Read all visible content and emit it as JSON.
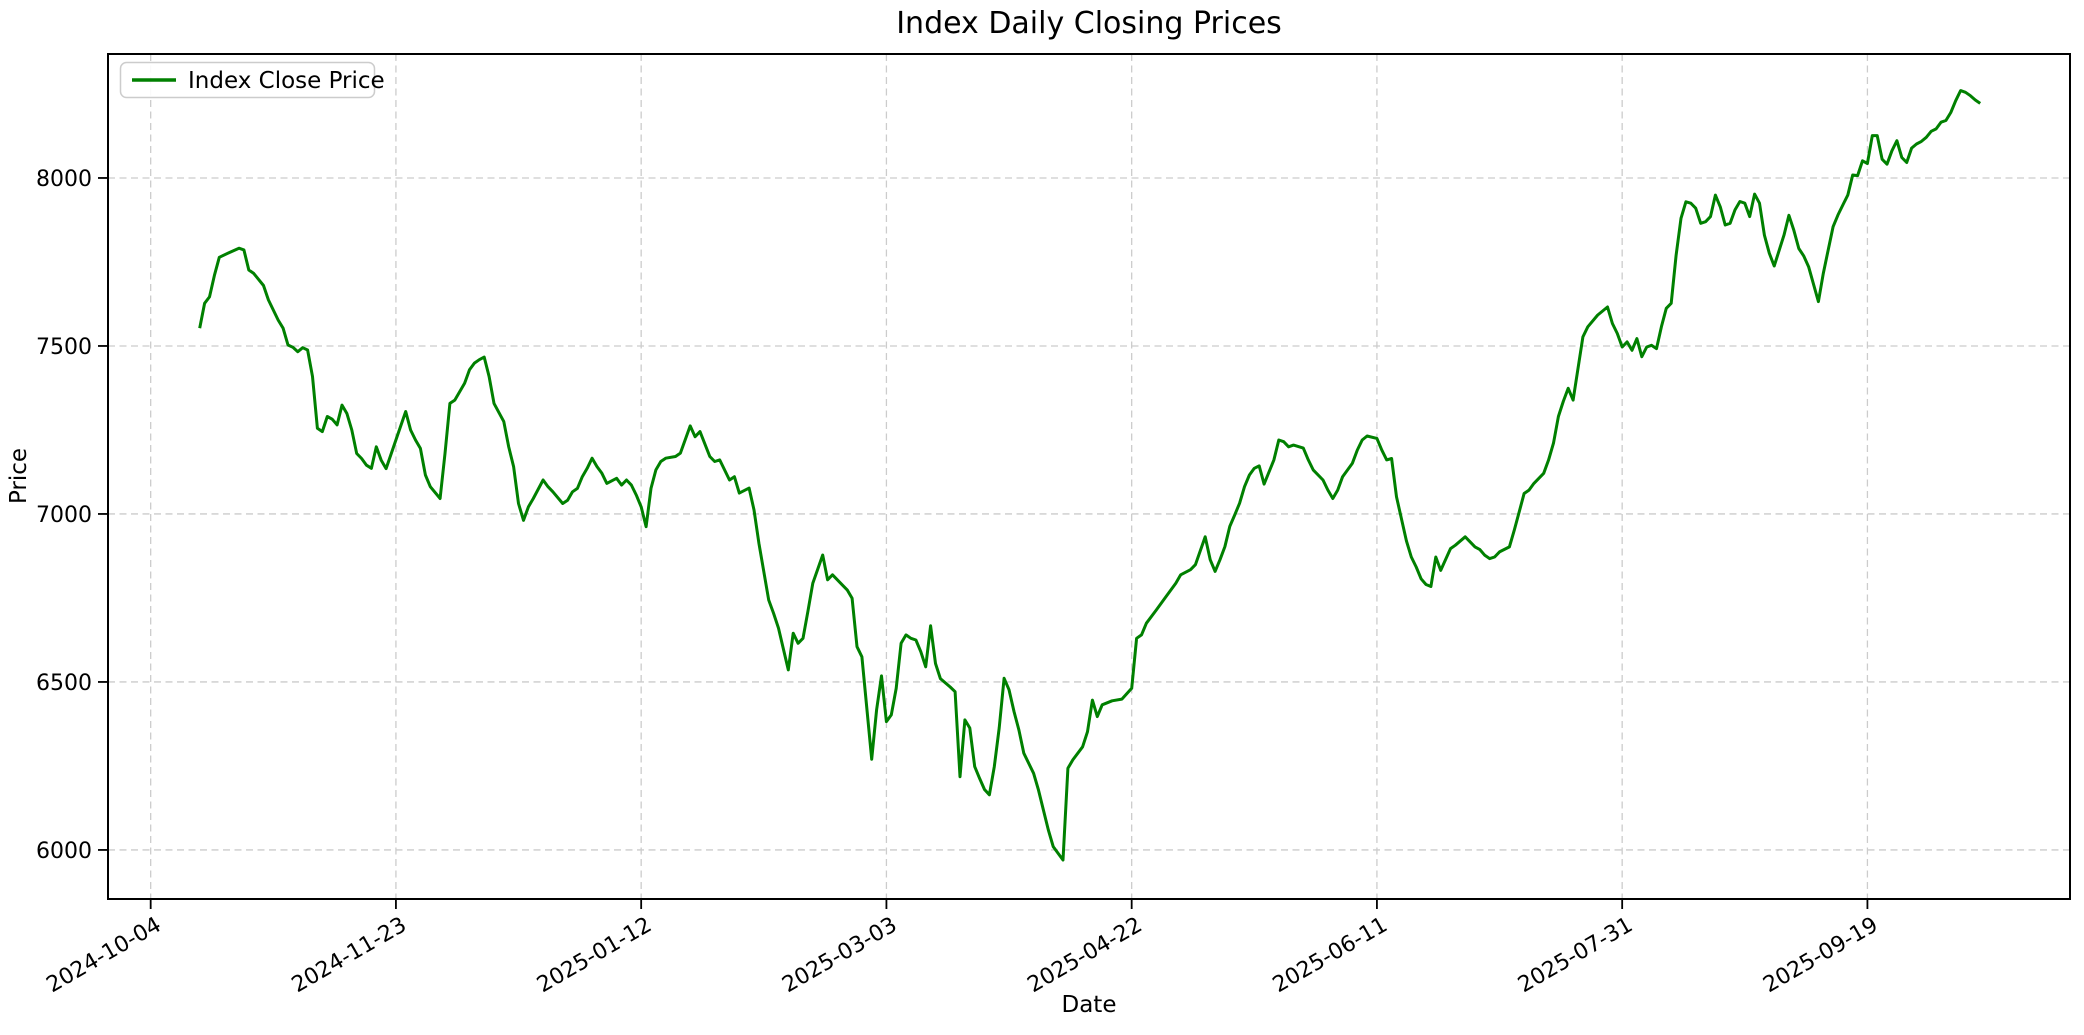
{
  "figure": {
    "background_color": "#ffffff",
    "plot_border_color": "#000000",
    "grid_color": "#cccccc"
  },
  "chart_data": {
    "type": "line",
    "title": "Index Daily Closing Prices",
    "xlabel": "Date",
    "ylabel": "Price",
    "grid": {
      "visible": true,
      "style": "dashed",
      "color": "#cccccc"
    },
    "legend": {
      "position": "upper left",
      "entries": [
        {
          "label": "Index Close Price",
          "color": "#008000"
        }
      ]
    },
    "x_axis": {
      "unit": "days since 2024-10-04",
      "base_date": "2024-10-04",
      "tick_days": [
        0,
        50,
        100,
        150,
        200,
        250,
        300,
        350
      ],
      "tick_labels": [
        "2024-10-04",
        "2024-11-23",
        "2025-01-12",
        "2025-03-03",
        "2025-04-22",
        "2025-06-11",
        "2025-07-31",
        "2025-09-19"
      ],
      "tick_rotation_deg": 30,
      "lim_days": [
        -8.7,
        391.3
      ]
    },
    "y_axis": {
      "ticks": [
        6000,
        6500,
        7000,
        7500,
        8000
      ],
      "lim": [
        5854,
        8369
      ]
    },
    "series": [
      {
        "name": "Index Close Price",
        "color": "#008000",
        "line_width": 3,
        "points_format": "[days_since_2024-10-04, close_price]",
        "points": [
          [
            10,
            7553
          ],
          [
            11,
            7627
          ],
          [
            12,
            7646
          ],
          [
            13,
            7710
          ],
          [
            14,
            7764
          ],
          [
            16,
            7778
          ],
          [
            18,
            7791
          ],
          [
            19,
            7786
          ],
          [
            20,
            7726
          ],
          [
            21,
            7716
          ],
          [
            23,
            7680
          ],
          [
            24,
            7637
          ],
          [
            26,
            7577
          ],
          [
            27,
            7553
          ],
          [
            28,
            7503
          ],
          [
            29,
            7496
          ],
          [
            30,
            7483
          ],
          [
            31,
            7495
          ],
          [
            32,
            7488
          ],
          [
            33,
            7409
          ],
          [
            34,
            7255
          ],
          [
            35,
            7245
          ],
          [
            36,
            7290
          ],
          [
            37,
            7282
          ],
          [
            38,
            7265
          ],
          [
            39,
            7324
          ],
          [
            40,
            7299
          ],
          [
            41,
            7250
          ],
          [
            42,
            7180
          ],
          [
            43,
            7165
          ],
          [
            44,
            7145
          ],
          [
            45,
            7136
          ],
          [
            46,
            7200
          ],
          [
            47,
            7160
          ],
          [
            48,
            7135
          ],
          [
            50,
            7220
          ],
          [
            52,
            7305
          ],
          [
            53,
            7250
          ],
          [
            54,
            7220
          ],
          [
            55,
            7195
          ],
          [
            56,
            7116
          ],
          [
            57,
            7081
          ],
          [
            59,
            7046
          ],
          [
            60,
            7180
          ],
          [
            61,
            7329
          ],
          [
            62,
            7339
          ],
          [
            64,
            7389
          ],
          [
            65,
            7429
          ],
          [
            66,
            7449
          ],
          [
            67,
            7459
          ],
          [
            68,
            7467
          ],
          [
            69,
            7409
          ],
          [
            70,
            7329
          ],
          [
            72,
            7275
          ],
          [
            73,
            7200
          ],
          [
            74,
            7141
          ],
          [
            75,
            7031
          ],
          [
            76,
            6981
          ],
          [
            77,
            7021
          ],
          [
            78,
            7046
          ],
          [
            80,
            7101
          ],
          [
            81,
            7081
          ],
          [
            82,
            7066
          ],
          [
            84,
            7031
          ],
          [
            85,
            7041
          ],
          [
            86,
            7066
          ],
          [
            87,
            7076
          ],
          [
            88,
            7111
          ],
          [
            89,
            7136
          ],
          [
            90,
            7166
          ],
          [
            91,
            7141
          ],
          [
            92,
            7121
          ],
          [
            93,
            7091
          ],
          [
            95,
            7106
          ],
          [
            96,
            7086
          ],
          [
            97,
            7101
          ],
          [
            98,
            7086
          ],
          [
            99,
            7056
          ],
          [
            100,
            7021
          ],
          [
            101,
            6962
          ],
          [
            102,
            7076
          ],
          [
            103,
            7131
          ],
          [
            104,
            7156
          ],
          [
            105,
            7166
          ],
          [
            107,
            7171
          ],
          [
            108,
            7181
          ],
          [
            110,
            7262
          ],
          [
            111,
            7230
          ],
          [
            112,
            7245
          ],
          [
            114,
            7171
          ],
          [
            115,
            7156
          ],
          [
            116,
            7161
          ],
          [
            118,
            7101
          ],
          [
            119,
            7111
          ],
          [
            120,
            7062
          ],
          [
            122,
            7077
          ],
          [
            123,
            7012
          ],
          [
            124,
            6913
          ],
          [
            126,
            6744
          ],
          [
            127,
            6704
          ],
          [
            128,
            6660
          ],
          [
            130,
            6536
          ],
          [
            131,
            6645
          ],
          [
            132,
            6615
          ],
          [
            133,
            6630
          ],
          [
            134,
            6710
          ],
          [
            135,
            6794
          ],
          [
            137,
            6878
          ],
          [
            138,
            6804
          ],
          [
            139,
            6819
          ],
          [
            141,
            6789
          ],
          [
            142,
            6774
          ],
          [
            143,
            6749
          ],
          [
            144,
            6605
          ],
          [
            145,
            6575
          ],
          [
            147,
            6270
          ],
          [
            148,
            6417
          ],
          [
            149,
            6518
          ],
          [
            150,
            6382
          ],
          [
            151,
            6402
          ],
          [
            152,
            6481
          ],
          [
            153,
            6615
          ],
          [
            154,
            6640
          ],
          [
            155,
            6630
          ],
          [
            156,
            6625
          ],
          [
            157,
            6590
          ],
          [
            158,
            6545
          ],
          [
            159,
            6667
          ],
          [
            160,
            6555
          ],
          [
            161,
            6510
          ],
          [
            163,
            6485
          ],
          [
            164,
            6471
          ],
          [
            165,
            6218
          ],
          [
            166,
            6387
          ],
          [
            167,
            6363
          ],
          [
            168,
            6248
          ],
          [
            169,
            6213
          ],
          [
            170,
            6180
          ],
          [
            171,
            6164
          ],
          [
            172,
            6248
          ],
          [
            173,
            6363
          ],
          [
            174,
            6511
          ],
          [
            175,
            6477
          ],
          [
            176,
            6412
          ],
          [
            177,
            6357
          ],
          [
            178,
            6288
          ],
          [
            180,
            6228
          ],
          [
            181,
            6178
          ],
          [
            182,
            6119
          ],
          [
            183,
            6060
          ],
          [
            184,
            6010
          ],
          [
            186,
            5970
          ],
          [
            187,
            6243
          ],
          [
            188,
            6268
          ],
          [
            190,
            6307
          ],
          [
            191,
            6352
          ],
          [
            192,
            6446
          ],
          [
            193,
            6397
          ],
          [
            194,
            6432
          ],
          [
            196,
            6444
          ],
          [
            198,
            6449
          ],
          [
            200,
            6481
          ],
          [
            201,
            6630
          ],
          [
            202,
            6640
          ],
          [
            203,
            6675
          ],
          [
            205,
            6714
          ],
          [
            207,
            6754
          ],
          [
            209,
            6794
          ],
          [
            210,
            6819
          ],
          [
            212,
            6834
          ],
          [
            213,
            6849
          ],
          [
            215,
            6932
          ],
          [
            216,
            6864
          ],
          [
            217,
            6829
          ],
          [
            218,
            6864
          ],
          [
            219,
            6903
          ],
          [
            220,
            6963
          ],
          [
            221,
            6997
          ],
          [
            222,
            7032
          ],
          [
            223,
            7081
          ],
          [
            224,
            7116
          ],
          [
            225,
            7136
          ],
          [
            226,
            7143
          ],
          [
            227,
            7089
          ],
          [
            229,
            7161
          ],
          [
            230,
            7220
          ],
          [
            231,
            7215
          ],
          [
            232,
            7200
          ],
          [
            233,
            7205
          ],
          [
            235,
            7196
          ],
          [
            236,
            7161
          ],
          [
            237,
            7131
          ],
          [
            239,
            7101
          ],
          [
            240,
            7071
          ],
          [
            241,
            7046
          ],
          [
            242,
            7071
          ],
          [
            243,
            7111
          ],
          [
            245,
            7151
          ],
          [
            246,
            7190
          ],
          [
            247,
            7220
          ],
          [
            248,
            7232
          ],
          [
            250,
            7225
          ],
          [
            251,
            7190
          ],
          [
            252,
            7161
          ],
          [
            253,
            7165
          ],
          [
            254,
            7051
          ],
          [
            256,
            6920
          ],
          [
            257,
            6872
          ],
          [
            258,
            6842
          ],
          [
            259,
            6807
          ],
          [
            260,
            6790
          ],
          [
            261,
            6784
          ],
          [
            262,
            6872
          ],
          [
            263,
            6832
          ],
          [
            265,
            6897
          ],
          [
            266,
            6907
          ],
          [
            268,
            6932
          ],
          [
            270,
            6902
          ],
          [
            271,
            6894
          ],
          [
            272,
            6877
          ],
          [
            273,
            6867
          ],
          [
            274,
            6872
          ],
          [
            275,
            6887
          ],
          [
            277,
            6902
          ],
          [
            278,
            6952
          ],
          [
            279,
            7006
          ],
          [
            280,
            7061
          ],
          [
            281,
            7071
          ],
          [
            282,
            7091
          ],
          [
            284,
            7121
          ],
          [
            285,
            7161
          ],
          [
            286,
            7211
          ],
          [
            287,
            7290
          ],
          [
            288,
            7335
          ],
          [
            289,
            7374
          ],
          [
            290,
            7339
          ],
          [
            292,
            7527
          ],
          [
            293,
            7557
          ],
          [
            295,
            7592
          ],
          [
            297,
            7616
          ],
          [
            298,
            7567
          ],
          [
            299,
            7537
          ],
          [
            300,
            7497
          ],
          [
            301,
            7512
          ],
          [
            302,
            7487
          ],
          [
            303,
            7522
          ],
          [
            304,
            7468
          ],
          [
            305,
            7497
          ],
          [
            306,
            7502
          ],
          [
            307,
            7492
          ],
          [
            308,
            7557
          ],
          [
            309,
            7612
          ],
          [
            310,
            7627
          ],
          [
            311,
            7770
          ],
          [
            312,
            7880
          ],
          [
            313,
            7929
          ],
          [
            314,
            7925
          ],
          [
            315,
            7910
          ],
          [
            316,
            7865
          ],
          [
            317,
            7870
          ],
          [
            318,
            7885
          ],
          [
            319,
            7949
          ],
          [
            320,
            7914
          ],
          [
            321,
            7860
          ],
          [
            322,
            7865
          ],
          [
            323,
            7905
          ],
          [
            324,
            7930
          ],
          [
            325,
            7925
          ],
          [
            326,
            7885
          ],
          [
            327,
            7952
          ],
          [
            328,
            7925
          ],
          [
            329,
            7830
          ],
          [
            330,
            7776
          ],
          [
            331,
            7738
          ],
          [
            333,
            7830
          ],
          [
            334,
            7889
          ],
          [
            335,
            7845
          ],
          [
            336,
            7790
          ],
          [
            337,
            7768
          ],
          [
            338,
            7736
          ],
          [
            340,
            7632
          ],
          [
            341,
            7716
          ],
          [
            342,
            7786
          ],
          [
            343,
            7855
          ],
          [
            344,
            7890
          ],
          [
            345,
            7920
          ],
          [
            346,
            7949
          ],
          [
            347,
            8009
          ],
          [
            348,
            8007
          ],
          [
            349,
            8051
          ],
          [
            350,
            8043
          ],
          [
            351,
            8126
          ],
          [
            352,
            8126
          ],
          [
            353,
            8056
          ],
          [
            354,
            8041
          ],
          [
            355,
            8081
          ],
          [
            356,
            8111
          ],
          [
            357,
            8061
          ],
          [
            358,
            8046
          ],
          [
            359,
            8089
          ],
          [
            360,
            8101
          ],
          [
            361,
            8109
          ],
          [
            362,
            8121
          ],
          [
            363,
            8139
          ],
          [
            364,
            8146
          ],
          [
            365,
            8166
          ],
          [
            366,
            8171
          ],
          [
            367,
            8195
          ],
          [
            368,
            8230
          ],
          [
            369,
            8260
          ],
          [
            370,
            8255
          ],
          [
            371,
            8245
          ],
          [
            372,
            8232
          ],
          [
            373,
            8222
          ]
        ]
      }
    ]
  }
}
